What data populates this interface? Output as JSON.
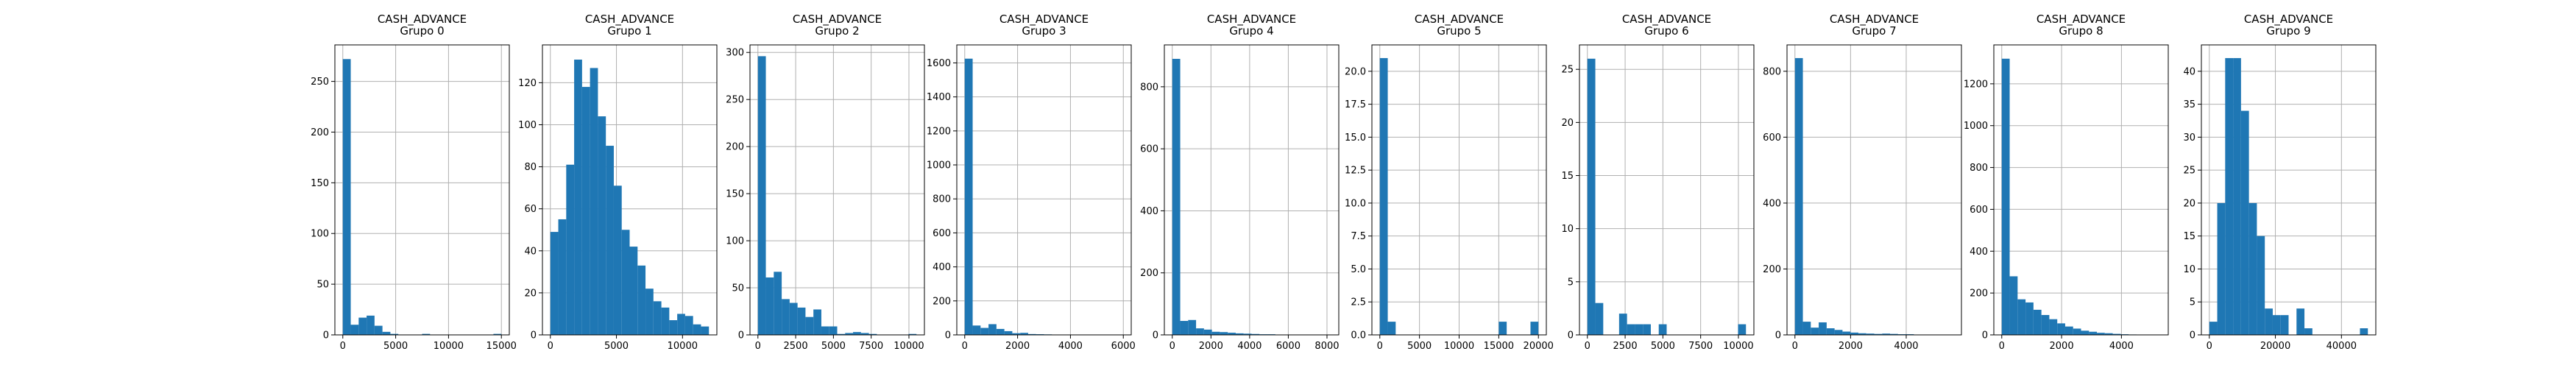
{
  "chart_data": [
    {
      "type": "bar",
      "title": "CASH_ADVANCE\nGrupo 0",
      "xlim": [
        -750,
        15750
      ],
      "ylim": [
        0,
        286
      ],
      "xticks": [
        0,
        5000,
        10000,
        15000
      ],
      "xtick_labels": [
        "0",
        "5000",
        "10000",
        "15000"
      ],
      "yticks": [
        0,
        50,
        100,
        150,
        200,
        250
      ],
      "ytick_labels": [
        "0",
        "50",
        "100",
        "150",
        "200",
        "250"
      ],
      "bin_edges": [
        0,
        750,
        1500,
        2250,
        3000,
        3750,
        4500,
        5250,
        6000,
        6750,
        7500,
        8250,
        9000,
        9750,
        10500,
        11250,
        12000,
        12750,
        13500,
        14250,
        15000
      ],
      "values": [
        272,
        10,
        17,
        19,
        9,
        3,
        1,
        0,
        0,
        0,
        1,
        0,
        0,
        0,
        0,
        0,
        0,
        0,
        0,
        1
      ]
    },
    {
      "type": "bar",
      "title": "CASH_ADVANCE\nGrupo 1",
      "xlim": [
        -600,
        12600
      ],
      "ylim": [
        0,
        138
      ],
      "xticks": [
        0,
        5000,
        10000
      ],
      "xtick_labels": [
        "0",
        "5000",
        "10000"
      ],
      "yticks": [
        0,
        20,
        40,
        60,
        80,
        100,
        120
      ],
      "ytick_labels": [
        "0",
        "20",
        "40",
        "60",
        "80",
        "100",
        "120"
      ],
      "bin_edges": [
        0,
        600,
        1200,
        1800,
        2400,
        3000,
        3600,
        4200,
        4800,
        5400,
        6000,
        6600,
        7200,
        7800,
        8400,
        9000,
        9600,
        10200,
        10800,
        11400,
        12000
      ],
      "values": [
        49,
        55,
        81,
        131,
        118,
        127,
        104,
        90,
        71,
        50,
        42,
        33,
        22,
        16,
        13,
        7,
        10,
        9,
        5,
        4
      ]
    },
    {
      "type": "bar",
      "title": "CASH_ADVANCE\nGrupo 2",
      "xlim": [
        -525,
        11025
      ],
      "ylim": [
        0,
        308
      ],
      "xticks": [
        0,
        2500,
        5000,
        7500,
        10000
      ],
      "xtick_labels": [
        "0",
        "2500",
        "5000",
        "7500",
        "10000"
      ],
      "yticks": [
        0,
        50,
        100,
        150,
        200,
        250,
        300
      ],
      "ytick_labels": [
        "0",
        "50",
        "100",
        "150",
        "200",
        "250",
        "300"
      ],
      "bin_edges": [
        0,
        525,
        1050,
        1575,
        2100,
        2625,
        3150,
        3675,
        4200,
        4725,
        5250,
        5775,
        6300,
        6825,
        7350,
        7875,
        8400,
        8925,
        9450,
        9975,
        10500
      ],
      "values": [
        296,
        61,
        67,
        38,
        34,
        29,
        19,
        27,
        9,
        9,
        1,
        2,
        3,
        2,
        1,
        0,
        0,
        0,
        0,
        1
      ]
    },
    {
      "type": "bar",
      "title": "CASH_ADVANCE\nGrupo 3",
      "xlim": [
        -300,
        6300
      ],
      "ylim": [
        0,
        1706
      ],
      "xticks": [
        0,
        2000,
        4000,
        6000
      ],
      "xtick_labels": [
        "0",
        "2000",
        "4000",
        "6000"
      ],
      "yticks": [
        0,
        200,
        400,
        600,
        800,
        1000,
        1200,
        1400,
        1600
      ],
      "ytick_labels": [
        "0",
        "200",
        "400",
        "600",
        "800",
        "1000",
        "1200",
        "1400",
        "1600"
      ],
      "bin_edges": [
        0,
        300,
        600,
        900,
        1200,
        1500,
        1800,
        2100,
        2400,
        2700,
        3000,
        3300,
        3600,
        3900,
        4200,
        4500,
        4800,
        5100,
        5400,
        5700,
        6000
      ],
      "values": [
        1625,
        55,
        41,
        63,
        35,
        22,
        10,
        12,
        5,
        4,
        3,
        2,
        2,
        1,
        1,
        1,
        0,
        0,
        0,
        1
      ]
    },
    {
      "type": "bar",
      "title": "CASH_ADVANCE\nGrupo 4",
      "xlim": [
        -410,
        8610
      ],
      "ylim": [
        0,
        935
      ],
      "xticks": [
        0,
        2000,
        4000,
        6000,
        8000
      ],
      "xtick_labels": [
        "0",
        "2000",
        "4000",
        "6000",
        "8000"
      ],
      "yticks": [
        0,
        200,
        400,
        600,
        800
      ],
      "ytick_labels": [
        "0",
        "200",
        "400",
        "600",
        "800"
      ],
      "bin_edges": [
        0,
        410,
        820,
        1230,
        1640,
        2050,
        2460,
        2870,
        3280,
        3690,
        4100,
        4510,
        4920,
        5330,
        5740,
        6150,
        6560,
        6970,
        7380,
        7790,
        8200
      ],
      "values": [
        890,
        45,
        48,
        21,
        17,
        10,
        9,
        7,
        5,
        4,
        3,
        2,
        2,
        1,
        1,
        1,
        0,
        0,
        0,
        1
      ]
    },
    {
      "type": "bar",
      "title": "CASH_ADVANCE\nGrupo 5",
      "xlim": [
        -1000,
        21000
      ],
      "ylim": [
        0,
        22
      ],
      "xticks": [
        0,
        5000,
        10000,
        15000,
        20000
      ],
      "xtick_labels": [
        "0",
        "5000",
        "10000",
        "15000",
        "20000"
      ],
      "yticks": [
        0,
        2.5,
        5,
        7.5,
        10,
        12.5,
        15,
        17.5,
        20
      ],
      "ytick_labels": [
        "0.0",
        "2.5",
        "5.0",
        "7.5",
        "10.0",
        "12.5",
        "15.0",
        "17.5",
        "20.0"
      ],
      "bin_edges": [
        0,
        1000,
        2000,
        3000,
        4000,
        5000,
        6000,
        7000,
        8000,
        9000,
        10000,
        11000,
        12000,
        13000,
        14000,
        15000,
        16000,
        17000,
        18000,
        19000,
        20000
      ],
      "values": [
        21,
        1,
        0,
        0,
        0,
        0,
        0,
        0,
        0,
        0,
        0,
        0,
        0,
        0,
        0,
        1,
        0,
        0,
        0,
        1
      ]
    },
    {
      "type": "bar",
      "title": "CASH_ADVANCE\nGrupo 6",
      "xlim": [
        -525,
        11025
      ],
      "ylim": [
        0,
        27.3
      ],
      "xticks": [
        0,
        2500,
        5000,
        7500,
        10000
      ],
      "xtick_labels": [
        "0",
        "2500",
        "5000",
        "7500",
        "10000"
      ],
      "yticks": [
        0,
        5,
        10,
        15,
        20,
        25
      ],
      "ytick_labels": [
        "0",
        "5",
        "10",
        "15",
        "20",
        "25"
      ],
      "bin_edges": [
        0,
        525,
        1050,
        1575,
        2100,
        2625,
        3150,
        3675,
        4200,
        4725,
        5250,
        5775,
        6300,
        6825,
        7350,
        7875,
        8400,
        8925,
        9450,
        9975,
        10500
      ],
      "values": [
        26,
        3,
        0,
        0,
        2,
        1,
        1,
        1,
        0,
        1,
        0,
        0,
        0,
        0,
        0,
        0,
        0,
        0,
        0,
        1
      ]
    },
    {
      "type": "bar",
      "title": "CASH_ADVANCE\nGrupo 7",
      "xlim": [
        -285,
        5985
      ],
      "ylim": [
        0,
        880
      ],
      "xticks": [
        0,
        2000,
        4000
      ],
      "xtick_labels": [
        "0",
        "2000",
        "4000"
      ],
      "yticks": [
        0,
        200,
        400,
        600,
        800
      ],
      "ytick_labels": [
        "0",
        "200",
        "400",
        "600",
        "800"
      ],
      "bin_edges": [
        0,
        285,
        570,
        855,
        1140,
        1425,
        1710,
        1995,
        2280,
        2565,
        2850,
        3135,
        3420,
        3705,
        3990,
        4275,
        4560,
        4845,
        5130,
        5415,
        5700
      ],
      "values": [
        840,
        40,
        22,
        38,
        20,
        15,
        10,
        7,
        5,
        4,
        3,
        4,
        3,
        2,
        2,
        1,
        1,
        1,
        0,
        1
      ]
    },
    {
      "type": "bar",
      "title": "CASH_ADVANCE\nGrupo 8",
      "xlim": [
        -265,
        5565
      ],
      "ylim": [
        0,
        1386
      ],
      "xticks": [
        0,
        2000,
        4000
      ],
      "xtick_labels": [
        "0",
        "2000",
        "4000"
      ],
      "yticks": [
        0,
        200,
        400,
        600,
        800,
        1000,
        1200
      ],
      "ytick_labels": [
        "0",
        "200",
        "400",
        "600",
        "800",
        "1000",
        "1200"
      ],
      "bin_edges": [
        0,
        265,
        530,
        795,
        1060,
        1325,
        1590,
        1855,
        2120,
        2385,
        2650,
        2915,
        3180,
        3445,
        3710,
        3975,
        4240,
        4505,
        4770,
        5035,
        5300
      ],
      "values": [
        1320,
        280,
        170,
        155,
        120,
        95,
        75,
        55,
        40,
        30,
        20,
        15,
        10,
        8,
        5,
        3,
        2,
        1,
        1,
        1
      ]
    },
    {
      "type": "bar",
      "title": "CASH_ADVANCE\nGrupo 9",
      "xlim": [
        -2400,
        50400
      ],
      "ylim": [
        0,
        44
      ],
      "xticks": [
        0,
        20000,
        40000
      ],
      "xtick_labels": [
        "0",
        "20000",
        "40000"
      ],
      "yticks": [
        0,
        5,
        10,
        15,
        20,
        25,
        30,
        35,
        40
      ],
      "ytick_labels": [
        "0",
        "5",
        "10",
        "15",
        "20",
        "25",
        "30",
        "35",
        "40"
      ],
      "bin_edges": [
        0,
        2400,
        4800,
        7200,
        9600,
        12000,
        14400,
        16800,
        19200,
        21600,
        24000,
        26400,
        28800,
        31200,
        33600,
        36000,
        38400,
        40800,
        43200,
        45600,
        48000
      ],
      "values": [
        2,
        20,
        42,
        42,
        34,
        20,
        15,
        4,
        3,
        3,
        0,
        4,
        1,
        0,
        0,
        0,
        0,
        0,
        0,
        1
      ]
    }
  ]
}
